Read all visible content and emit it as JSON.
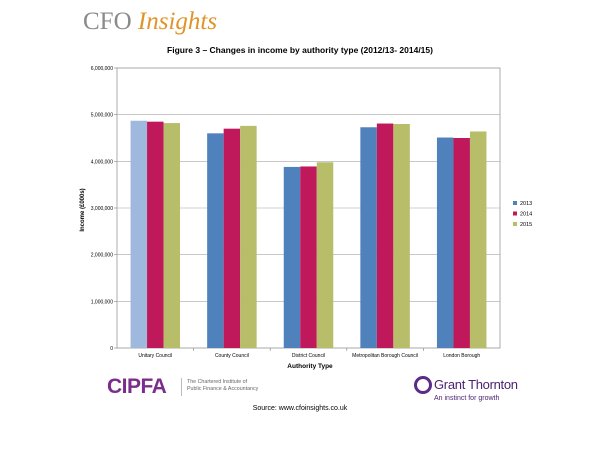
{
  "header": {
    "brand_main": "CFO ",
    "brand_accent": "Insights"
  },
  "chart_data": {
    "type": "bar",
    "title": "Figure 3 – Changes in income by authority type (2012/13- 2014/15)",
    "xlabel": "Authority Type",
    "ylabel": "Income (£000s)",
    "ylim": [
      0,
      6000000
    ],
    "yticks": [
      "0",
      "1,000,000",
      "2,000,000",
      "3,000,000",
      "4,000,000",
      "5,000,000",
      "6,000,000"
    ],
    "grid": true,
    "legend_position": "right",
    "categories": [
      "Unitary Council",
      "County Council",
      "District Council",
      "Metropolitan Borough Council",
      "London Borough"
    ],
    "series": [
      {
        "name": "2013",
        "color": "#4f81bd",
        "values": [
          4870000,
          4600000,
          3880000,
          4730000,
          4510000
        ]
      },
      {
        "name": "2014",
        "color": "#c0195b",
        "values": [
          4850000,
          4700000,
          3890000,
          4810000,
          4500000
        ]
      },
      {
        "name": "2015",
        "color": "#b8bd6a",
        "values": [
          4820000,
          4760000,
          3980000,
          4800000,
          4640000
        ]
      }
    ],
    "first_bar_color": "#9fb9de"
  },
  "footer": {
    "cipfa_mark": "CIPFA",
    "cipfa_line1": "The Chartered Institute of",
    "cipfa_line2": "Public Finance & Accountancy",
    "gt_name": "Grant Thornton",
    "gt_tagline": "An instinct for growth",
    "source": "Source: www.cfoinsights.co.uk"
  }
}
